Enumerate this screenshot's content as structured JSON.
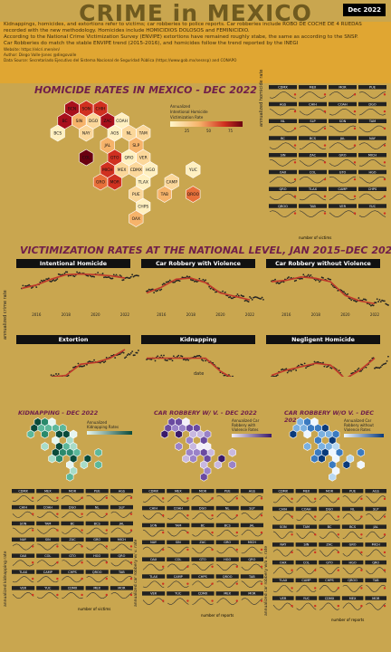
{
  "header": {
    "title": "CRIME in MEXICO",
    "date_badge": "Dec 2022",
    "intro": [
      "Kidnappings, homicides, and extortions refer to victims; car robberies to police reports. Car robberies include ROBO DE COCHE DE 4 RUEDAS",
      "recorded with the new methodology. Homicides include HOMICIDIOS DOLOSOS and FEMINICIDIO.",
      "According to the National Crime Victimization Survey (ENVIPE) extortions have remained roughly stabe, the same as according to the SNSP.",
      "Car Robberies do match the stable ENVIPE trend (2015-2016), and homicides follow the trend reported by the INEGI"
    ],
    "website": "Website: https://elcri.men/en/",
    "author": "Author: Diego Valle-Jones @diegovalle",
    "sources": "Data Source: Secretariado Ejecutivo del Sistema Nacional de Seguridad Pública (https://www.gob.mx/sesnsp) and CONAPO"
  },
  "homicide_section": {
    "title": "HOMICIDE RATES IN MEXICO - DEC 2022",
    "legend_title": [
      "Annualized",
      "Intentional Homicide",
      "Victimization Rate"
    ],
    "legend_ticks": [
      "25",
      "50",
      "75"
    ],
    "ylabel": "annualized homicide rate",
    "legend2_title": "number of victims"
  },
  "national_section": {
    "title": "VICTIMIZATION RATES AT THE NATIONAL LEVEL, JAN 2015–DEC 2022",
    "ylabel": "annualized crime rate",
    "xlabel": "date"
  },
  "maps_bottom": {
    "kidnap_title": "KIDNAPPING - DEC 2022",
    "kidnap_legend": [
      "Annualized",
      "Kidnapping Rates"
    ],
    "carv_title": "CAR ROBBERY W/ V. - DEC 2022",
    "carv_legend": [
      "Annualized Car",
      "Robbery with",
      "Violence Rates"
    ],
    "carnv_title": "CAR ROBBERY W/O V. - DEC 2022",
    "carnv_legend": [
      "Annualized Car",
      "Robbery without",
      "Violence Rates"
    ],
    "ylab_kidnap": "annualized kidnapping rate",
    "ylab_carv": "annualized car robbery w/ v. rate",
    "ylab_carnv": "annualized car robbery w/o v. rate",
    "victims_label": "number of victims",
    "reports_label": "number of reports"
  },
  "chart_data": [
    {
      "type": "heatmap",
      "title": "HOMICIDE RATES IN MEXICO - DEC 2022",
      "states": [
        {
          "code": "BCN",
          "value": 70
        },
        {
          "code": "BC",
          "value": 60
        },
        {
          "code": "SIN",
          "value": 25
        },
        {
          "code": "SON",
          "value": 45
        },
        {
          "code": "DGO",
          "value": 12
        },
        {
          "code": "CHIH",
          "value": 55
        },
        {
          "code": "COAH",
          "value": 8
        },
        {
          "code": "BCS",
          "value": 8
        },
        {
          "code": "NAY",
          "value": 12
        },
        {
          "code": "ZAC",
          "value": 70
        },
        {
          "code": "NL",
          "value": 18
        },
        {
          "code": "AGS",
          "value": 6
        },
        {
          "code": "JAL",
          "value": 24
        },
        {
          "code": "TAM",
          "value": 14
        },
        {
          "code": "SLP",
          "value": 22
        },
        {
          "code": "COL",
          "value": 90
        },
        {
          "code": "GTO",
          "value": 55
        },
        {
          "code": "VER",
          "value": 15
        },
        {
          "code": "MICH",
          "value": 50
        },
        {
          "code": "QRO",
          "value": 10
        },
        {
          "code": "HGO",
          "value": 8
        },
        {
          "code": "YUC",
          "value": 3
        },
        {
          "code": "MEX",
          "value": 18
        },
        {
          "code": "CDMX",
          "value": 12
        },
        {
          "code": "TLAX",
          "value": 10
        },
        {
          "code": "CAMP",
          "value": 12
        },
        {
          "code": "GRO",
          "value": 40
        },
        {
          "code": "MOR",
          "value": 55
        },
        {
          "code": "PUE",
          "value": 18
        },
        {
          "code": "TAB",
          "value": 20
        },
        {
          "code": "QROO",
          "value": 30
        },
        {
          "code": "CHPS",
          "value": 10
        },
        {
          "code": "OAX",
          "value": 22
        }
      ]
    },
    {
      "type": "line",
      "title": "Intentional Homicide",
      "x": [
        2015,
        2016,
        2017,
        2018,
        2019,
        2020,
        2021,
        2022
      ],
      "series": [
        {
          "values": [
            17,
            20,
            25,
            29,
            29.5,
            29,
            28,
            26
          ]
        }
      ],
      "ylim": [
        0,
        30
      ]
    },
    {
      "type": "line",
      "title": "Car Robbery with Violence",
      "x": [
        2015,
        2016,
        2017,
        2018,
        2019,
        2020,
        2021,
        2022
      ],
      "series": [
        {
          "values": [
            33,
            38,
            45,
            46,
            42,
            33,
            30,
            27
          ]
        }
      ],
      "ylim": [
        20,
        50
      ]
    },
    {
      "type": "line",
      "title": "Car Robbery without Violence",
      "x": [
        2015,
        2016,
        2017,
        2018,
        2019,
        2020,
        2021,
        2022
      ],
      "series": [
        {
          "values": [
            88,
            90,
            95,
            93,
            88,
            68,
            60,
            56
          ]
        }
      ],
      "ylim": [
        50,
        100
      ]
    },
    {
      "type": "line",
      "title": "Extortion",
      "x": [
        2015,
        2016,
        2017,
        2018,
        2019,
        2020,
        2021,
        2022
      ],
      "series": [
        {
          "values": [
            4.5,
            4.3,
            4.8,
            5.0,
            6.3,
            6.5,
            7.0,
            8.0
          ]
        }
      ],
      "ylim": [
        4,
        8
      ]
    },
    {
      "type": "line",
      "title": "Kidnapping",
      "x": [
        2015,
        2016,
        2017,
        2018,
        2019,
        2020,
        2021,
        2022
      ],
      "series": [
        {
          "values": [
            1.0,
            1.0,
            1.0,
            1.0,
            1.0,
            0.7,
            0.5,
            0.4
          ]
        }
      ],
      "ylim": [
        0.4,
        1.2
      ]
    },
    {
      "type": "line",
      "title": "Negligent Homicide",
      "x": [
        2015,
        2016,
        2017,
        2018,
        2019,
        2020,
        2021,
        2022
      ],
      "series": [
        {
          "values": [
            12.5,
            12.8,
            13.0,
            13.2,
            13.1,
            12.3,
            12.8,
            13.5
          ]
        }
      ],
      "ylim": [
        12,
        14
      ]
    }
  ],
  "small_multiples": {
    "states_top": [
      "CDMX",
      "MEX",
      "MOR",
      "PUE",
      "AGS",
      "CHIH",
      "COAH",
      "DGO",
      "NL",
      "SLP",
      "SON",
      "TAM",
      "BC",
      "BCS",
      "JAL",
      "NAY",
      "SIN",
      "ZAC",
      "GRO",
      "MICH",
      "OAX",
      "COL",
      "GTO",
      "HGO",
      "QRO",
      "TLAX",
      "CAMP",
      "CHPS",
      "QROO",
      "TAB",
      "VER",
      "YUC"
    ],
    "years": [
      "2015",
      "2018",
      "2022"
    ],
    "bubble_sizes": [
      "20",
      "100",
      "200"
    ]
  },
  "colors": {
    "accent_dark": "#6f1e4a",
    "panel_bg": "#c9a64f",
    "banner": "#e0a632",
    "line": "#c0392b"
  }
}
